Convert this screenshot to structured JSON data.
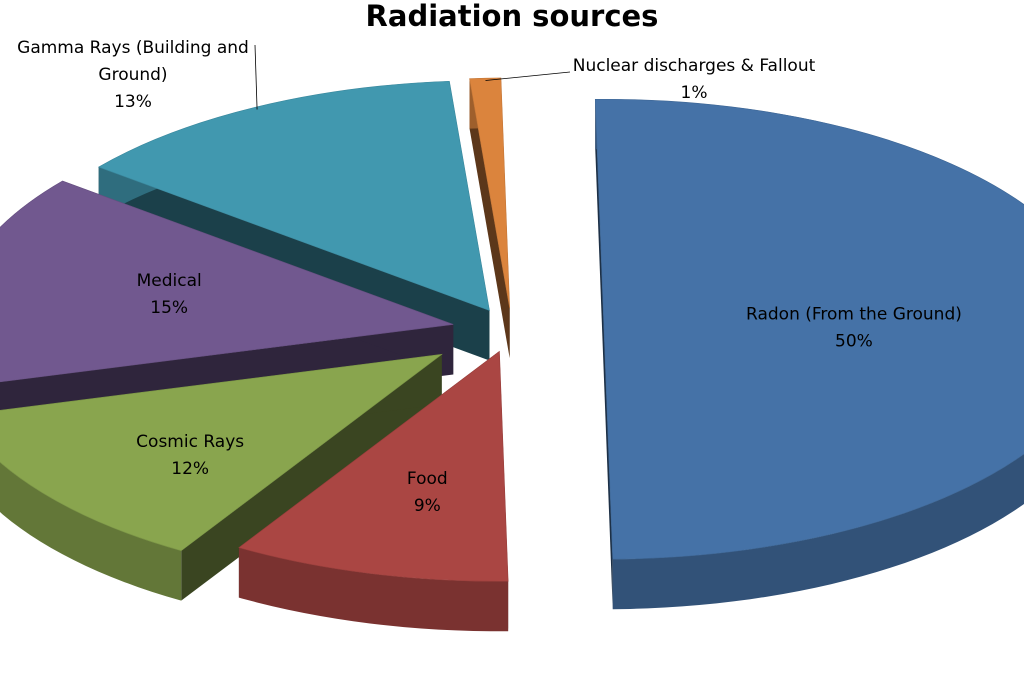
{
  "chart_data": {
    "type": "pie",
    "title": "Radiation sources",
    "slices": [
      {
        "name": "Radon (From the Ground)",
        "value": 50,
        "label_lines": [
          "Radon (From the Ground)",
          "50%"
        ],
        "color": "#4572A7"
      },
      {
        "name": "Food",
        "value": 9,
        "label_lines": [
          "Food",
          "9%"
        ],
        "color": "#AA4643"
      },
      {
        "name": "Cosmic Rays",
        "value": 12,
        "label_lines": [
          "Cosmic Rays",
          "12%"
        ],
        "color": "#89A54E"
      },
      {
        "name": "Medical",
        "value": 15,
        "label_lines": [
          "Medical",
          "15%"
        ],
        "color": "#71588F"
      },
      {
        "name": "Gamma Rays (Building and Ground)",
        "value": 13,
        "label_lines": [
          "Gamma Rays (Building and",
          "Ground)",
          "13%"
        ],
        "color": "#4198AF"
      },
      {
        "name": "Nuclear discharges & Fallout",
        "value": 1,
        "label_lines": [
          "Nuclear discharges & Fallout",
          "1%"
        ],
        "color": "#DB843D"
      }
    ],
    "exploded": true,
    "three_d": true,
    "legend": "none"
  }
}
